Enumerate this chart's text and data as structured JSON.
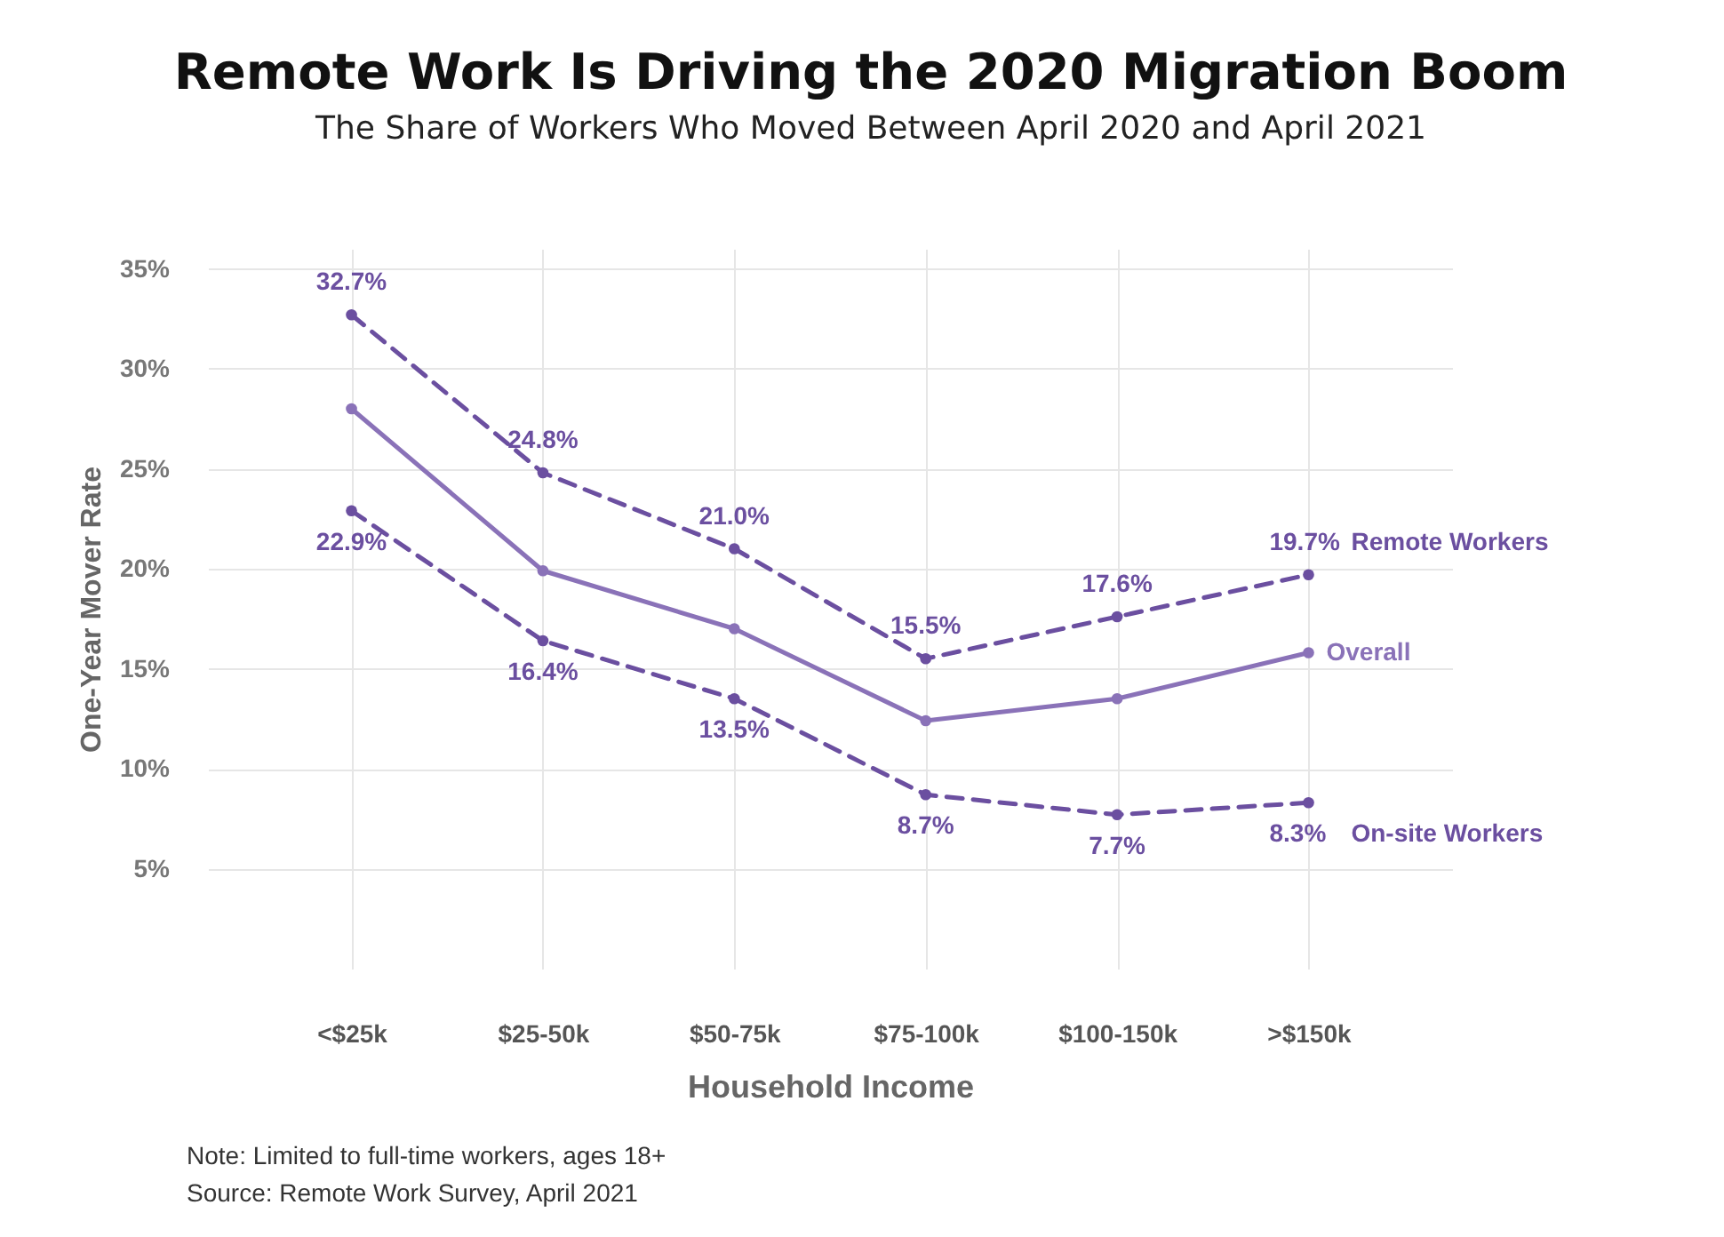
{
  "chart_data": {
    "type": "line",
    "title": "Remote Work Is Driving the 2020 Migration Boom",
    "subtitle": "The Share of Workers Who Moved Between April 2020 and April 2021",
    "xlabel": "Household Income",
    "ylabel": "One-Year Mover Rate",
    "categories": [
      "<$25k",
      "$25-50k",
      "$50-75k",
      "$75-100k",
      "$100-150k",
      ">$150k"
    ],
    "series": [
      {
        "name": "Remote Workers",
        "color": "#6b4fa0",
        "line_style": "dashed",
        "values": [
          32.7,
          24.8,
          21.0,
          15.5,
          17.6,
          19.7
        ],
        "value_labels": [
          "32.7%",
          "24.8%",
          "21.0%",
          "15.5%",
          "17.6%",
          "19.7%"
        ]
      },
      {
        "name": "Overall",
        "color": "#8a72b8",
        "line_style": "solid",
        "values": [
          28.0,
          19.9,
          17.0,
          12.4,
          13.5,
          15.8
        ]
      },
      {
        "name": "On-site Workers",
        "color": "#6b4fa0",
        "line_style": "dashed",
        "values": [
          22.9,
          16.4,
          13.5,
          8.7,
          7.7,
          8.3
        ],
        "value_labels": [
          "22.9%",
          "16.4%",
          "13.5%",
          "8.7%",
          "7.7%",
          "8.3%"
        ]
      }
    ],
    "ylim": [
      0,
      36
    ],
    "yticks": [
      {
        "value": 5,
        "label": "5%"
      },
      {
        "value": 10,
        "label": "10%"
      },
      {
        "value": 15,
        "label": "15%"
      },
      {
        "value": 20,
        "label": "20%"
      },
      {
        "value": 25,
        "label": "25%"
      },
      {
        "value": 30,
        "label": "30%"
      },
      {
        "value": 35,
        "label": "35%"
      }
    ],
    "grid": true,
    "legend": false,
    "marker": "circle",
    "annotations": [
      "Note: Limited to full-time workers, ages 18+",
      "Source: Remote Work Survey, April 2021"
    ]
  }
}
